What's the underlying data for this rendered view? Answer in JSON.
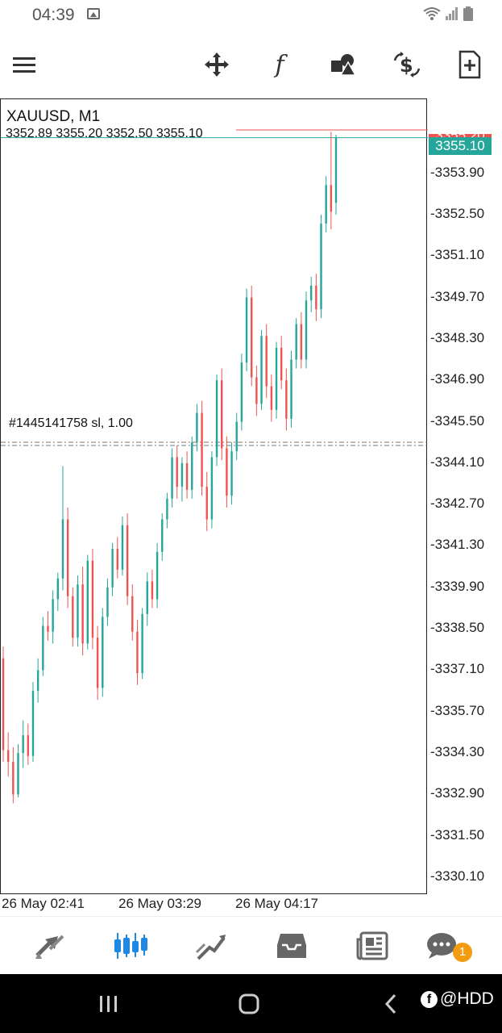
{
  "status": {
    "time": "04:39"
  },
  "chart": {
    "symbol_tf": "XAUUSD, M1",
    "ohlc": "3352.89 3355.20 3352.50 3355.10",
    "bid_price": "3355.10",
    "ask_price": "3355.20",
    "order_label": "#1445141758 sl, 1.00",
    "price_ticks": [
      "3353.90",
      "3352.50",
      "3351.10",
      "3349.70",
      "3348.30",
      "3346.90",
      "3345.50",
      "3344.10",
      "3342.70",
      "3341.30",
      "3339.90",
      "3338.50",
      "3337.10",
      "3335.70",
      "3334.30",
      "3332.90",
      "3331.50",
      "3330.10"
    ],
    "time_ticks": [
      "26 May 02:41",
      "26 May 03:29",
      "26 May 04:17"
    ],
    "colors": {
      "bull": "#26a69a",
      "bear": "#ef5350",
      "sl_line": "#c0392b"
    }
  },
  "chart_data": {
    "type": "candlestick",
    "title": "XAUUSD, M1",
    "ylim": [
      3329.5,
      3356.4
    ],
    "x": [
      "26 May 02:41",
      "26 May 03:29",
      "26 May 04:17"
    ],
    "series": [
      {
        "values": [
          [
            3337.5,
            3337.9,
            3334.0,
            3334.4
          ],
          [
            3334.4,
            3335.0,
            3333.5,
            3334.0
          ],
          [
            3334.0,
            3334.5,
            3332.6,
            3332.9
          ],
          [
            3332.9,
            3334.6,
            3332.8,
            3334.3
          ],
          [
            3334.3,
            3335.4,
            3333.8,
            3334.9
          ],
          [
            3334.9,
            3335.3,
            3333.9,
            3334.2
          ],
          [
            3334.2,
            3336.7,
            3334.0,
            3336.4
          ],
          [
            3336.4,
            3337.5,
            3336.0,
            3337.1
          ],
          [
            3337.1,
            3338.9,
            3336.9,
            3338.6
          ],
          [
            3338.6,
            3339.1,
            3338.1,
            3338.4
          ],
          [
            3338.4,
            3339.8,
            3338.0,
            3339.5
          ],
          [
            3339.5,
            3340.4,
            3339.1,
            3340.2
          ],
          [
            3340.2,
            3344.0,
            3339.8,
            3342.2
          ],
          [
            3342.2,
            3342.6,
            3339.2,
            3339.6
          ],
          [
            3339.6,
            3339.9,
            3337.9,
            3338.2
          ],
          [
            3338.2,
            3340.3,
            3337.9,
            3340.0
          ],
          [
            3340.0,
            3340.6,
            3337.6,
            3338.0
          ],
          [
            3338.0,
            3341.0,
            3337.8,
            3340.8
          ],
          [
            3340.8,
            3341.2,
            3337.8,
            3338.2
          ],
          [
            3338.2,
            3338.6,
            3336.1,
            3336.5
          ],
          [
            3336.5,
            3339.2,
            3336.2,
            3338.9
          ],
          [
            3338.9,
            3340.2,
            3338.6,
            3339.9
          ],
          [
            3339.9,
            3341.4,
            3339.6,
            3341.2
          ],
          [
            3341.2,
            3341.6,
            3340.2,
            3340.5
          ],
          [
            3340.5,
            3342.3,
            3340.3,
            3342.0
          ],
          [
            3342.0,
            3342.4,
            3339.3,
            3339.6
          ],
          [
            3339.6,
            3340.0,
            3338.1,
            3338.4
          ],
          [
            3338.4,
            3338.8,
            3336.6,
            3337.0
          ],
          [
            3337.0,
            3339.2,
            3336.8,
            3339.0
          ],
          [
            3339.0,
            3340.4,
            3338.6,
            3340.1
          ],
          [
            3340.1,
            3340.5,
            3339.2,
            3339.5
          ],
          [
            3339.5,
            3341.4,
            3339.2,
            3341.1
          ],
          [
            3341.1,
            3342.4,
            3340.8,
            3342.2
          ],
          [
            3342.2,
            3343.1,
            3341.9,
            3342.9
          ],
          [
            3342.9,
            3344.6,
            3342.6,
            3344.3
          ],
          [
            3344.3,
            3344.7,
            3342.9,
            3343.3
          ],
          [
            3343.3,
            3344.3,
            3342.8,
            3344.1
          ],
          [
            3344.1,
            3344.5,
            3342.9,
            3343.2
          ],
          [
            3343.2,
            3345.0,
            3342.9,
            3344.8
          ],
          [
            3344.8,
            3346.1,
            3344.5,
            3345.8
          ],
          [
            3345.8,
            3346.2,
            3343.0,
            3343.3
          ],
          [
            3343.3,
            3343.8,
            3341.8,
            3342.2
          ],
          [
            3342.2,
            3344.5,
            3341.9,
            3344.3
          ],
          [
            3344.3,
            3347.1,
            3344.0,
            3346.9
          ],
          [
            3346.9,
            3347.3,
            3344.2,
            3344.6
          ],
          [
            3344.6,
            3345.0,
            3342.6,
            3343.0
          ],
          [
            3343.0,
            3344.8,
            3342.7,
            3344.5
          ],
          [
            3344.5,
            3345.8,
            3344.2,
            3345.5
          ],
          [
            3345.5,
            3347.8,
            3345.2,
            3347.5
          ],
          [
            3347.5,
            3350.0,
            3347.2,
            3349.7
          ],
          [
            3349.7,
            3350.1,
            3346.7,
            3347.0
          ],
          [
            3347.0,
            3347.4,
            3345.7,
            3346.1
          ],
          [
            3346.1,
            3348.6,
            3345.9,
            3348.4
          ],
          [
            3348.4,
            3348.8,
            3346.3,
            3346.7
          ],
          [
            3346.7,
            3347.1,
            3345.5,
            3345.9
          ],
          [
            3345.9,
            3348.2,
            3345.6,
            3348.0
          ],
          [
            3348.0,
            3348.4,
            3346.6,
            3346.9
          ],
          [
            3346.9,
            3347.3,
            3345.2,
            3345.6
          ],
          [
            3345.6,
            3347.9,
            3345.3,
            3347.6
          ],
          [
            3347.6,
            3349.0,
            3347.3,
            3348.8
          ],
          [
            3348.8,
            3349.2,
            3347.3,
            3347.6
          ],
          [
            3347.6,
            3349.9,
            3347.3,
            3349.6
          ],
          [
            3349.6,
            3350.4,
            3349.2,
            3350.1
          ],
          [
            3350.1,
            3350.5,
            3348.9,
            3349.3
          ],
          [
            3349.3,
            3352.5,
            3349.0,
            3352.2
          ],
          [
            3352.2,
            3353.8,
            3351.9,
            3353.5
          ],
          [
            3353.5,
            3355.3,
            3352.0,
            3352.6
          ],
          [
            3352.9,
            3355.2,
            3352.5,
            3355.1
          ]
        ]
      }
    ]
  },
  "toolbar": {
    "items": [
      {
        "name": "menu-icon"
      },
      {
        "name": "crosshair-move-icon"
      },
      {
        "name": "indicators-icon"
      },
      {
        "name": "objects-icon"
      },
      {
        "name": "trade-icon"
      },
      {
        "name": "new-order-icon"
      }
    ]
  },
  "nav": {
    "items": [
      {
        "name": "quotes-icon"
      },
      {
        "name": "chart-icon"
      },
      {
        "name": "trade-icon"
      },
      {
        "name": "history-icon"
      },
      {
        "name": "news-icon"
      },
      {
        "name": "messages-icon"
      }
    ],
    "badge_count": "1"
  },
  "watermark": {
    "text": "@HDD",
    "fb": "f"
  }
}
